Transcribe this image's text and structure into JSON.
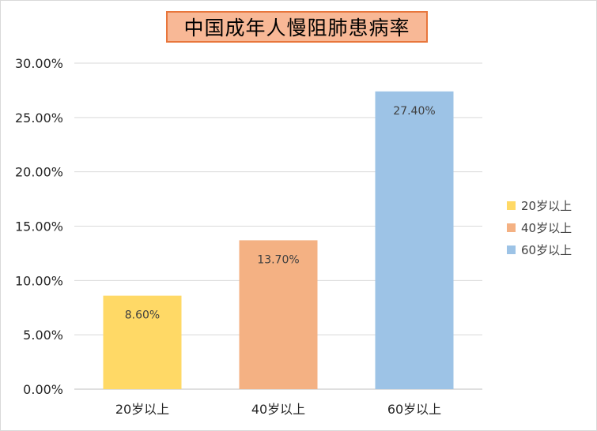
{
  "chart_data": {
    "type": "bar",
    "title": "中国成年人慢阻肺患病率",
    "categories": [
      "20岁以上",
      "40岁以上",
      "60岁以上"
    ],
    "values": [
      8.6,
      13.7,
      27.4
    ],
    "data_labels": [
      "8.60%",
      "13.70%",
      "27.40%"
    ],
    "colors": [
      "#ffd966",
      "#f4b183",
      "#9dc3e6"
    ],
    "ylim": [
      0,
      30
    ],
    "yticks": [
      0,
      5,
      10,
      15,
      20,
      25,
      30
    ],
    "ytick_labels": [
      "0.00%",
      "5.00%",
      "10.00%",
      "15.00%",
      "20.00%",
      "25.00%",
      "30.00%"
    ],
    "grid": true,
    "legend_position": "right",
    "legend": [
      "20岁以上",
      "40岁以上",
      "60岁以上"
    ]
  }
}
